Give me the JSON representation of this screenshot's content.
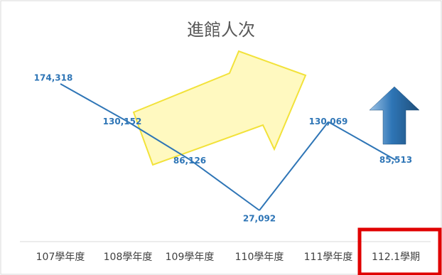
{
  "chart_data": {
    "type": "line",
    "title": "進館人次",
    "xlabel": "",
    "ylabel": "",
    "categories": [
      "107學年度",
      "108學年度",
      "109學年度",
      "110學年度",
      "111學年度",
      "112.1學期"
    ],
    "series": [
      {
        "values": [
          174318,
          130152,
          86126,
          27092,
          130069,
          85513
        ],
        "value_labels": [
          "174,318",
          "130,152",
          "86,126",
          "27,092",
          "130,069",
          "85,513"
        ]
      }
    ],
    "ylim": [
      0,
      200000
    ],
    "grid": false,
    "legend": "none",
    "highlighted_category": "112.1學期"
  },
  "colors": {
    "line": "#2e75b6",
    "label": "#2e75b6",
    "title": "#595959",
    "tick": "#404040",
    "highlight_box": "#e00000",
    "yellow_arrow_fill": "#fff7b0",
    "yellow_arrow_stroke": "#f2e23a",
    "blue_arrow": "#2e75b6"
  },
  "decorations": {
    "yellow_arrow": "arrow-right-up-icon",
    "blue_arrow": "arrow-up-icon"
  }
}
